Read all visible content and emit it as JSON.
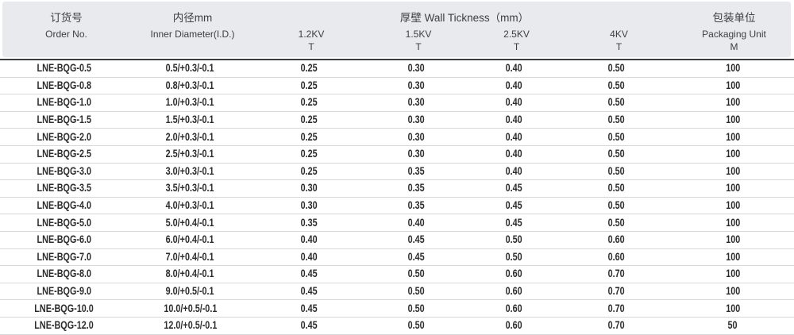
{
  "table": {
    "header": {
      "order_no_zh": "订货号",
      "order_no_en": "Order No.",
      "inner_diameter_zh": "内径mm",
      "inner_diameter_en": "Inner Diameter(I.D.)",
      "wall_thickness_group": "厚壁 Wall Tickness（mm）",
      "voltages": [
        {
          "label": "1.2KV",
          "sub": "T"
        },
        {
          "label": "1.5KV",
          "sub": "T"
        },
        {
          "label": "2.5KV",
          "sub": "T"
        },
        {
          "label": "4KV",
          "sub": "T"
        }
      ],
      "packaging_zh": "包装单位",
      "packaging_en": "Packaging Unit",
      "packaging_sub": "M"
    },
    "rows": [
      {
        "order_no": "LNE-BQG-0.5",
        "inner_diameter": "0.5/+0.3/-0.1",
        "t_1_2kv": "0.25",
        "t_1_5kv": "0.30",
        "t_2_5kv": "0.40",
        "t_4kv": "0.50",
        "packaging": "100"
      },
      {
        "order_no": "LNE-BQG-0.8",
        "inner_diameter": "0.8/+0.3/-0.1",
        "t_1_2kv": "0.25",
        "t_1_5kv": "0.30",
        "t_2_5kv": "0.40",
        "t_4kv": "0.50",
        "packaging": "100"
      },
      {
        "order_no": "LNE-BQG-1.0",
        "inner_diameter": "1.0/+0.3/-0.1",
        "t_1_2kv": "0.25",
        "t_1_5kv": "0.30",
        "t_2_5kv": "0.40",
        "t_4kv": "0.50",
        "packaging": "100"
      },
      {
        "order_no": "LNE-BQG-1.5",
        "inner_diameter": "1.5/+0.3/-0.1",
        "t_1_2kv": "0.25",
        "t_1_5kv": "0.30",
        "t_2_5kv": "0.40",
        "t_4kv": "0.50",
        "packaging": "100"
      },
      {
        "order_no": "LNE-BQG-2.0",
        "inner_diameter": "2.0/+0.3/-0.1",
        "t_1_2kv": "0.25",
        "t_1_5kv": "0.30",
        "t_2_5kv": "0.40",
        "t_4kv": "0.50",
        "packaging": "100"
      },
      {
        "order_no": "LNE-BQG-2.5",
        "inner_diameter": "2.5/+0.3/-0.1",
        "t_1_2kv": "0.25",
        "t_1_5kv": "0.30",
        "t_2_5kv": "0.40",
        "t_4kv": "0.50",
        "packaging": "100"
      },
      {
        "order_no": "LNE-BQG-3.0",
        "inner_diameter": "3.0/+0.3/-0.1",
        "t_1_2kv": "0.25",
        "t_1_5kv": "0.35",
        "t_2_5kv": "0.40",
        "t_4kv": "0.50",
        "packaging": "100"
      },
      {
        "order_no": "LNE-BQG-3.5",
        "inner_diameter": "3.5/+0.3/-0.1",
        "t_1_2kv": "0.30",
        "t_1_5kv": "0.35",
        "t_2_5kv": "0.45",
        "t_4kv": "0.50",
        "packaging": "100"
      },
      {
        "order_no": "LNE-BQG-4.0",
        "inner_diameter": "4.0/+0.3/-0.1",
        "t_1_2kv": "0.30",
        "t_1_5kv": "0.35",
        "t_2_5kv": "0.45",
        "t_4kv": "0.50",
        "packaging": "100"
      },
      {
        "order_no": "LNE-BQG-5.0",
        "inner_diameter": "5.0/+0.4/-0.1",
        "t_1_2kv": "0.35",
        "t_1_5kv": "0.40",
        "t_2_5kv": "0.45",
        "t_4kv": "0.50",
        "packaging": "100"
      },
      {
        "order_no": "LNE-BQG-6.0",
        "inner_diameter": "6.0/+0.4/-0.1",
        "t_1_2kv": "0.40",
        "t_1_5kv": "0.45",
        "t_2_5kv": "0.50",
        "t_4kv": "0.60",
        "packaging": "100"
      },
      {
        "order_no": "LNE-BQG-7.0",
        "inner_diameter": "7.0/+0.4/-0.1",
        "t_1_2kv": "0.40",
        "t_1_5kv": "0.45",
        "t_2_5kv": "0.50",
        "t_4kv": "0.60",
        "packaging": "100"
      },
      {
        "order_no": "LNE-BQG-8.0",
        "inner_diameter": "8.0/+0.4/-0.1",
        "t_1_2kv": "0.45",
        "t_1_5kv": "0.50",
        "t_2_5kv": "0.60",
        "t_4kv": "0.70",
        "packaging": "100"
      },
      {
        "order_no": "LNE-BQG-9.0",
        "inner_diameter": "9.0/+0.5/-0.1",
        "t_1_2kv": "0.45",
        "t_1_5kv": "0.50",
        "t_2_5kv": "0.60",
        "t_4kv": "0.70",
        "packaging": "100"
      },
      {
        "order_no": "LNE-BQG-10.0",
        "inner_diameter": "10.0/+0.5/-0.1",
        "t_1_2kv": "0.45",
        "t_1_5kv": "0.50",
        "t_2_5kv": "0.60",
        "t_4kv": "0.70",
        "packaging": "100"
      },
      {
        "order_no": "LNE-BQG-12.0",
        "inner_diameter": "12.0/+0.5/-0.1",
        "t_1_2kv": "0.45",
        "t_1_5kv": "0.50",
        "t_2_5kv": "0.60",
        "t_4kv": "0.70",
        "packaging": "50"
      }
    ]
  },
  "colors": {
    "header_bg": "#e8eaed",
    "header_text": "#3b4045",
    "rule_dark": "#3a3e42",
    "row_separator": "#d7d8d9",
    "body_text": "#2b2c2e",
    "background": "#ffffff"
  }
}
